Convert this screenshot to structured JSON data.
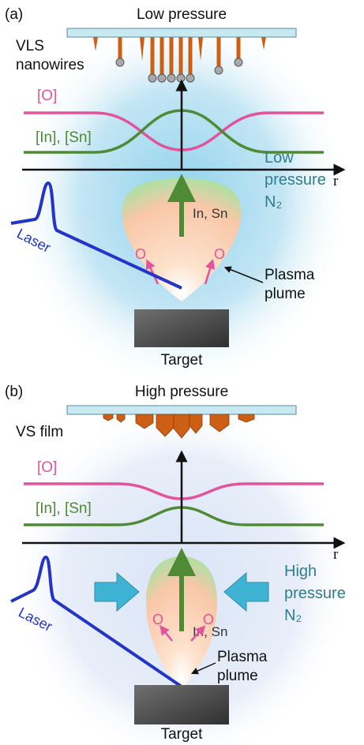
{
  "panels": [
    {
      "label": "(a)",
      "title": "Low pressure",
      "deposit_label": [
        "VLS",
        "nanowires"
      ],
      "o_label": "[O]",
      "in_sn_label": "[In], [Sn]",
      "axis_label": "r",
      "species_label": "In, Sn",
      "o_marker": [
        "O",
        "O"
      ],
      "laser_label": "Laser",
      "gas_label": [
        "Low",
        "pressure",
        "N₂"
      ],
      "plume_label": [
        "Plasma",
        "plume"
      ],
      "target_label": "Target"
    },
    {
      "label": "(b)",
      "title": "High pressure",
      "deposit_label": [
        "VS film"
      ],
      "o_label": "[O]",
      "in_sn_label": "[In], [Sn]",
      "axis_label": "r",
      "species_label": "In, Sn",
      "o_marker": [
        "O",
        "O"
      ],
      "laser_label": "Laser",
      "gas_label": [
        "High",
        "pressure",
        "N₂"
      ],
      "plume_label": [
        "Plasma",
        "plume"
      ],
      "target_label": "Target"
    }
  ]
}
